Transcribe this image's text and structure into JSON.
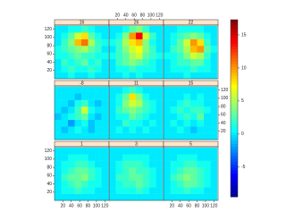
{
  "chart_data": {
    "type": "levelplot",
    "xlim": [
      0,
      130
    ],
    "ylim": [
      0,
      130
    ],
    "xticks": [
      20,
      40,
      60,
      80,
      100,
      120
    ],
    "yticks": [
      20,
      40,
      60,
      80,
      100,
      120
    ],
    "x": [
      8,
      24,
      40,
      56,
      72,
      88,
      104,
      120
    ],
    "y": [
      8,
      24,
      40,
      56,
      72,
      88,
      104,
      120
    ],
    "clim": [
      -9.5,
      17.3
    ],
    "cticks": [
      -5,
      0,
      5,
      10,
      15
    ],
    "colormap": [
      "#00008f",
      "#0000ff",
      "#0080ff",
      "#00ffff",
      "#80ff80",
      "#ffff00",
      "#ff8000",
      "#ff0000",
      "#800000"
    ],
    "panels": [
      {
        "label": "16",
        "z": [
          [
            0,
            0,
            1,
            0,
            0,
            1,
            0,
            0
          ],
          [
            0,
            1,
            2,
            1,
            1,
            2,
            1,
            0
          ],
          [
            0,
            2,
            1,
            2,
            3,
            1,
            2,
            0
          ],
          [
            1,
            1,
            2,
            3,
            2,
            2,
            1,
            1
          ],
          [
            1,
            2,
            3,
            4,
            5,
            3,
            2,
            0
          ],
          [
            0,
            2,
            4,
            9,
            11,
            5,
            2,
            1
          ],
          [
            0,
            1,
            3,
            6,
            8,
            3,
            1,
            0
          ],
          [
            0,
            0,
            1,
            1,
            2,
            1,
            0,
            0
          ]
        ]
      },
      {
        "label": "26",
        "z": [
          [
            0,
            0,
            1,
            0,
            1,
            0,
            0,
            0
          ],
          [
            0,
            1,
            1,
            2,
            1,
            1,
            1,
            0
          ],
          [
            0,
            2,
            3,
            4,
            3,
            2,
            1,
            0
          ],
          [
            1,
            2,
            3,
            5,
            6,
            3,
            2,
            1
          ],
          [
            0,
            2,
            4,
            6,
            7,
            4,
            2,
            0
          ],
          [
            1,
            2,
            5,
            8,
            9,
            4,
            1,
            0
          ],
          [
            0,
            1,
            4,
            10,
            14,
            6,
            2,
            0
          ],
          [
            0,
            0,
            1,
            3,
            4,
            2,
            0,
            0
          ]
        ]
      },
      {
        "label": "22",
        "z": [
          [
            0,
            0,
            0,
            1,
            0,
            0,
            0,
            0
          ],
          [
            0,
            1,
            1,
            1,
            2,
            1,
            1,
            0
          ],
          [
            0,
            1,
            2,
            2,
            3,
            3,
            1,
            0
          ],
          [
            1,
            1,
            2,
            4,
            6,
            5,
            2,
            0
          ],
          [
            0,
            2,
            3,
            5,
            9,
            10,
            3,
            1
          ],
          [
            0,
            1,
            3,
            6,
            10,
            8,
            2,
            0
          ],
          [
            0,
            1,
            2,
            3,
            4,
            3,
            1,
            0
          ],
          [
            0,
            0,
            1,
            1,
            1,
            1,
            0,
            0
          ]
        ]
      },
      {
        "label": "-8",
        "z": [
          [
            0,
            0,
            0,
            0,
            0,
            0,
            0,
            0
          ],
          [
            0,
            -1,
            0,
            1,
            0,
            -1,
            0,
            0
          ],
          [
            0,
            0,
            -2,
            0,
            1,
            -1,
            0,
            0
          ],
          [
            -1,
            0,
            1,
            2,
            3,
            0,
            -1,
            0
          ],
          [
            0,
            -1,
            0,
            2,
            6,
            1,
            0,
            0
          ],
          [
            0,
            0,
            -1,
            1,
            2,
            0,
            -1,
            0
          ],
          [
            0,
            0,
            0,
            -1,
            0,
            0,
            0,
            0
          ],
          [
            0,
            0,
            0,
            0,
            0,
            0,
            0,
            0
          ]
        ]
      },
      {
        "label": "11",
        "z": [
          [
            0,
            0,
            0,
            0,
            0,
            0,
            0,
            0
          ],
          [
            0,
            1,
            0,
            1,
            0,
            1,
            0,
            0
          ],
          [
            0,
            0,
            2,
            1,
            1,
            0,
            1,
            0
          ],
          [
            0,
            1,
            1,
            3,
            2,
            1,
            0,
            0
          ],
          [
            0,
            2,
            3,
            4,
            3,
            2,
            1,
            0
          ],
          [
            0,
            1,
            4,
            6,
            5,
            2,
            1,
            0
          ],
          [
            0,
            1,
            3,
            8,
            4,
            1,
            0,
            0
          ],
          [
            0,
            0,
            1,
            2,
            1,
            0,
            0,
            0
          ]
        ]
      },
      {
        "label": "15",
        "z": [
          [
            0,
            0,
            0,
            0,
            0,
            0,
            0,
            0
          ],
          [
            0,
            0,
            1,
            0,
            -1,
            0,
            0,
            0
          ],
          [
            0,
            1,
            0,
            1,
            0,
            1,
            0,
            0
          ],
          [
            0,
            0,
            1,
            2,
            1,
            3,
            0,
            0
          ],
          [
            0,
            1,
            2,
            1,
            2,
            2,
            1,
            0
          ],
          [
            0,
            0,
            1,
            2,
            1,
            1,
            0,
            0
          ],
          [
            0,
            0,
            0,
            1,
            0,
            1,
            0,
            0
          ],
          [
            0,
            0,
            0,
            0,
            0,
            0,
            0,
            0
          ]
        ]
      },
      {
        "label": "1",
        "z": [
          [
            0,
            0,
            0,
            0,
            0,
            0,
            0,
            0
          ],
          [
            0,
            1,
            1,
            2,
            1,
            1,
            0,
            0
          ],
          [
            0,
            1,
            2,
            3,
            2,
            1,
            1,
            0
          ],
          [
            0,
            2,
            3,
            3,
            4,
            2,
            1,
            0
          ],
          [
            0,
            1,
            2,
            3,
            3,
            2,
            1,
            0
          ],
          [
            0,
            1,
            1,
            2,
            2,
            1,
            0,
            0
          ],
          [
            0,
            0,
            1,
            1,
            1,
            0,
            0,
            0
          ],
          [
            0,
            0,
            0,
            0,
            0,
            0,
            0,
            0
          ]
        ]
      },
      {
        "label": "3",
        "z": [
          [
            0,
            0,
            0,
            0,
            0,
            0,
            0,
            0
          ],
          [
            0,
            1,
            1,
            1,
            2,
            1,
            0,
            0
          ],
          [
            0,
            1,
            2,
            2,
            3,
            2,
            1,
            0
          ],
          [
            0,
            2,
            2,
            3,
            3,
            2,
            1,
            0
          ],
          [
            0,
            1,
            2,
            3,
            2,
            2,
            1,
            0
          ],
          [
            0,
            1,
            2,
            2,
            2,
            1,
            0,
            0
          ],
          [
            0,
            0,
            1,
            1,
            1,
            1,
            0,
            0
          ],
          [
            0,
            0,
            0,
            0,
            0,
            0,
            0,
            0
          ]
        ]
      },
      {
        "label": "5",
        "z": [
          [
            0,
            0,
            0,
            0,
            0,
            0,
            0,
            0
          ],
          [
            0,
            1,
            1,
            2,
            1,
            1,
            0,
            0
          ],
          [
            0,
            1,
            2,
            3,
            3,
            2,
            1,
            0
          ],
          [
            0,
            2,
            3,
            4,
            3,
            2,
            1,
            0
          ],
          [
            0,
            1,
            2,
            3,
            3,
            2,
            1,
            0
          ],
          [
            0,
            1,
            1,
            2,
            2,
            1,
            1,
            0
          ],
          [
            0,
            0,
            1,
            1,
            1,
            0,
            0,
            0
          ],
          [
            0,
            0,
            0,
            0,
            0,
            0,
            0,
            0
          ]
        ]
      }
    ]
  }
}
